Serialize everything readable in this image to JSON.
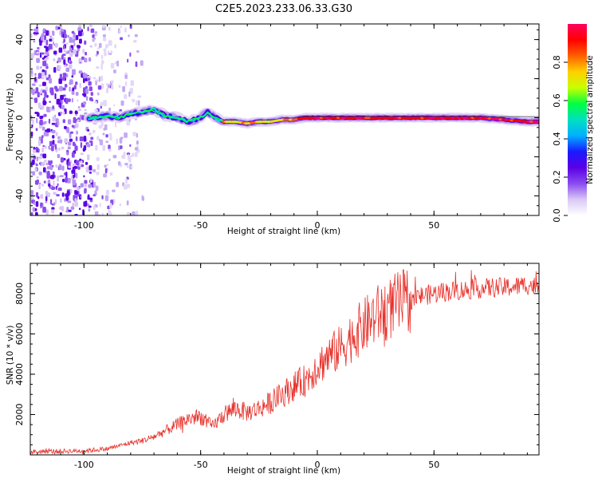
{
  "title": "C2E5.2023.233.06.33.G30",
  "chart_data": [
    {
      "type": "heatmap",
      "xlabel": "Height of straight line (km)",
      "ylabel": "Frequency (Hz)",
      "xlim": [
        -123,
        95
      ],
      "ylim": [
        -50,
        48
      ],
      "xticks": [
        -100,
        -50,
        0,
        50
      ],
      "yticks": [
        -40,
        -20,
        0,
        20,
        40
      ],
      "grid": false,
      "colorbar": {
        "label": "Normalized spectral amplitude",
        "range": [
          0,
          1
        ],
        "ticks": [
          0.0,
          0.2,
          0.4,
          0.6,
          0.8
        ],
        "colormap": [
          "#ffffff",
          "#d9c8f5",
          "#8a4bf0",
          "#5a00e6",
          "#1a1aff",
          "#00b0ff",
          "#00e0c0",
          "#00ff40",
          "#c8ff00",
          "#ffd000",
          "#ff6000",
          "#ff0000",
          "#ff0060"
        ]
      },
      "ridge": {
        "description_points_x": [
          -97,
          -90,
          -85,
          -80,
          -75,
          -70,
          -65,
          -60,
          -55,
          -50,
          -47,
          -45,
          -42,
          -40,
          -35,
          -30,
          -25,
          -20,
          -15,
          -10,
          -5,
          0,
          10,
          20,
          30,
          40,
          45,
          50,
          60,
          70,
          80,
          90,
          95
        ],
        "frequency_hz": [
          0,
          1,
          0,
          2,
          3,
          4,
          1,
          0,
          -2,
          0,
          3,
          1,
          -1,
          -2,
          -2,
          -3,
          -2,
          -2,
          -1,
          -1,
          0,
          0,
          0,
          0,
          0,
          0,
          0,
          0,
          0,
          0,
          -1,
          -2,
          -2
        ]
      },
      "noise_region_x": [
        -123,
        -75
      ]
    },
    {
      "type": "line",
      "xlabel": "Height of straight line (km)",
      "ylabel": "SNR (10 * v/v)",
      "xlim": [
        -123,
        95
      ],
      "ylim": [
        0,
        9500
      ],
      "xticks": [
        -100,
        -50,
        0,
        50
      ],
      "yticks": [
        2000,
        4000,
        6000,
        8000
      ],
      "grid": false,
      "color": "#e8302a",
      "trend": {
        "x": [
          -123,
          -110,
          -100,
          -90,
          -85,
          -80,
          -75,
          -70,
          -65,
          -60,
          -55,
          -50,
          -45,
          -40,
          -35,
          -30,
          -25,
          -20,
          -15,
          -10,
          -5,
          0,
          5,
          10,
          15,
          20,
          25,
          30,
          35,
          40,
          45,
          50,
          55,
          60,
          65,
          70,
          75,
          80,
          85,
          90,
          95
        ],
        "y": [
          150,
          180,
          200,
          300,
          450,
          600,
          700,
          900,
          1200,
          1500,
          1800,
          1900,
          1400,
          2000,
          2300,
          2100,
          2300,
          2600,
          3000,
          3400,
          3700,
          4400,
          4900,
          5300,
          5900,
          6400,
          6900,
          7200,
          7500,
          7700,
          7900,
          8000,
          8100,
          8150,
          8200,
          8250,
          8300,
          8300,
          8350,
          8450,
          8300
        ]
      }
    }
  ]
}
